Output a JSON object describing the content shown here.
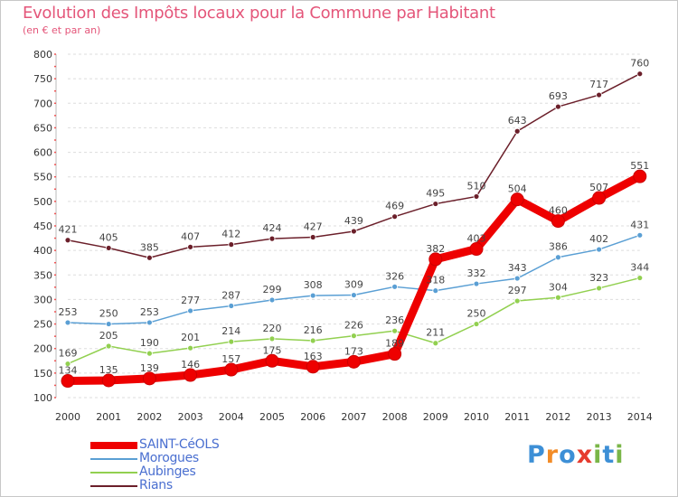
{
  "title": "Evolution des Impôts locaux pour la Commune par Habitant",
  "subtitle": "(en € et par an)",
  "logo": {
    "p": "P",
    "r": "r",
    "o": "o",
    "x": "x",
    "i1": "i",
    "t": "t",
    "i2": "i"
  },
  "colors": {
    "saint_ceols": "#ee0000",
    "morogues": "#5a9fd4",
    "aubinges": "#92d050",
    "rians": "#6b1f2a"
  },
  "chart_data": {
    "type": "line",
    "title": "Evolution des Impôts locaux pour la Commune par Habitant",
    "ylabel": "(en € et par an)",
    "xlabel": "",
    "ylim": [
      100,
      800
    ],
    "yticks": [
      100,
      150,
      200,
      250,
      300,
      350,
      400,
      450,
      500,
      550,
      600,
      650,
      700,
      750,
      800
    ],
    "categories": [
      "2000",
      "2001",
      "2002",
      "2003",
      "2004",
      "2005",
      "2006",
      "2007",
      "2008",
      "2009",
      "2010",
      "2011",
      "2012",
      "2013",
      "2014"
    ],
    "series": [
      {
        "name": "Rians",
        "key": "rians",
        "values": [
          421,
          405,
          385,
          407,
          412,
          424,
          427,
          439,
          469,
          495,
          510,
          643,
          693,
          717,
          760
        ]
      },
      {
        "name": "Morogues",
        "key": "morogues",
        "values": [
          253,
          250,
          253,
          277,
          287,
          299,
          308,
          309,
          326,
          318,
          332,
          343,
          386,
          402,
          431
        ]
      },
      {
        "name": "Aubinges",
        "key": "aubinges",
        "values": [
          169,
          205,
          190,
          201,
          214,
          220,
          216,
          226,
          236,
          211,
          250,
          297,
          304,
          323,
          344
        ]
      },
      {
        "name": "SAINT-CéOLS",
        "key": "saint_ceols",
        "values": [
          134,
          135,
          139,
          146,
          157,
          175,
          163,
          173,
          189,
          382,
          403,
          504,
          460,
          507,
          551
        ]
      }
    ]
  },
  "legend": [
    {
      "label": "SAINT-CéOLS",
      "key": "saint_ceols"
    },
    {
      "label": "Morogues",
      "key": "morogues"
    },
    {
      "label": "Aubinges",
      "key": "aubinges"
    },
    {
      "label": "Rians",
      "key": "rians"
    }
  ]
}
